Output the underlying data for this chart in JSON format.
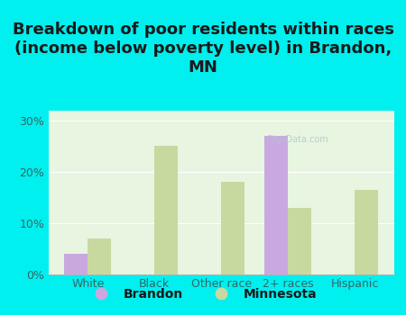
{
  "title": "Breakdown of poor residents within races\n(income below poverty level) in Brandon,\nMN",
  "categories": [
    "White",
    "Black",
    "Other race",
    "2+ races",
    "Hispanic"
  ],
  "brandon_values": [
    4.0,
    0,
    0,
    27.0,
    0
  ],
  "minnesota_values": [
    7.0,
    25.0,
    18.0,
    13.0,
    16.5
  ],
  "brandon_color": "#c9a8e0",
  "minnesota_color": "#c8d9a0",
  "background_outer": "#00efef",
  "background_inner": "#e8f5e0",
  "yticks": [
    0,
    10,
    20,
    30
  ],
  "ylim": [
    0,
    32
  ],
  "bar_width": 0.35,
  "title_fontsize": 13,
  "tick_fontsize": 9,
  "legend_fontsize": 10,
  "title_color": "#1a1a1a",
  "tick_color": "#336666",
  "watermark_text": "City-Data.com",
  "watermark_color": "#aacccc",
  "legend_label_brandon": "Brandon",
  "legend_label_minnesota": "Minnesota"
}
